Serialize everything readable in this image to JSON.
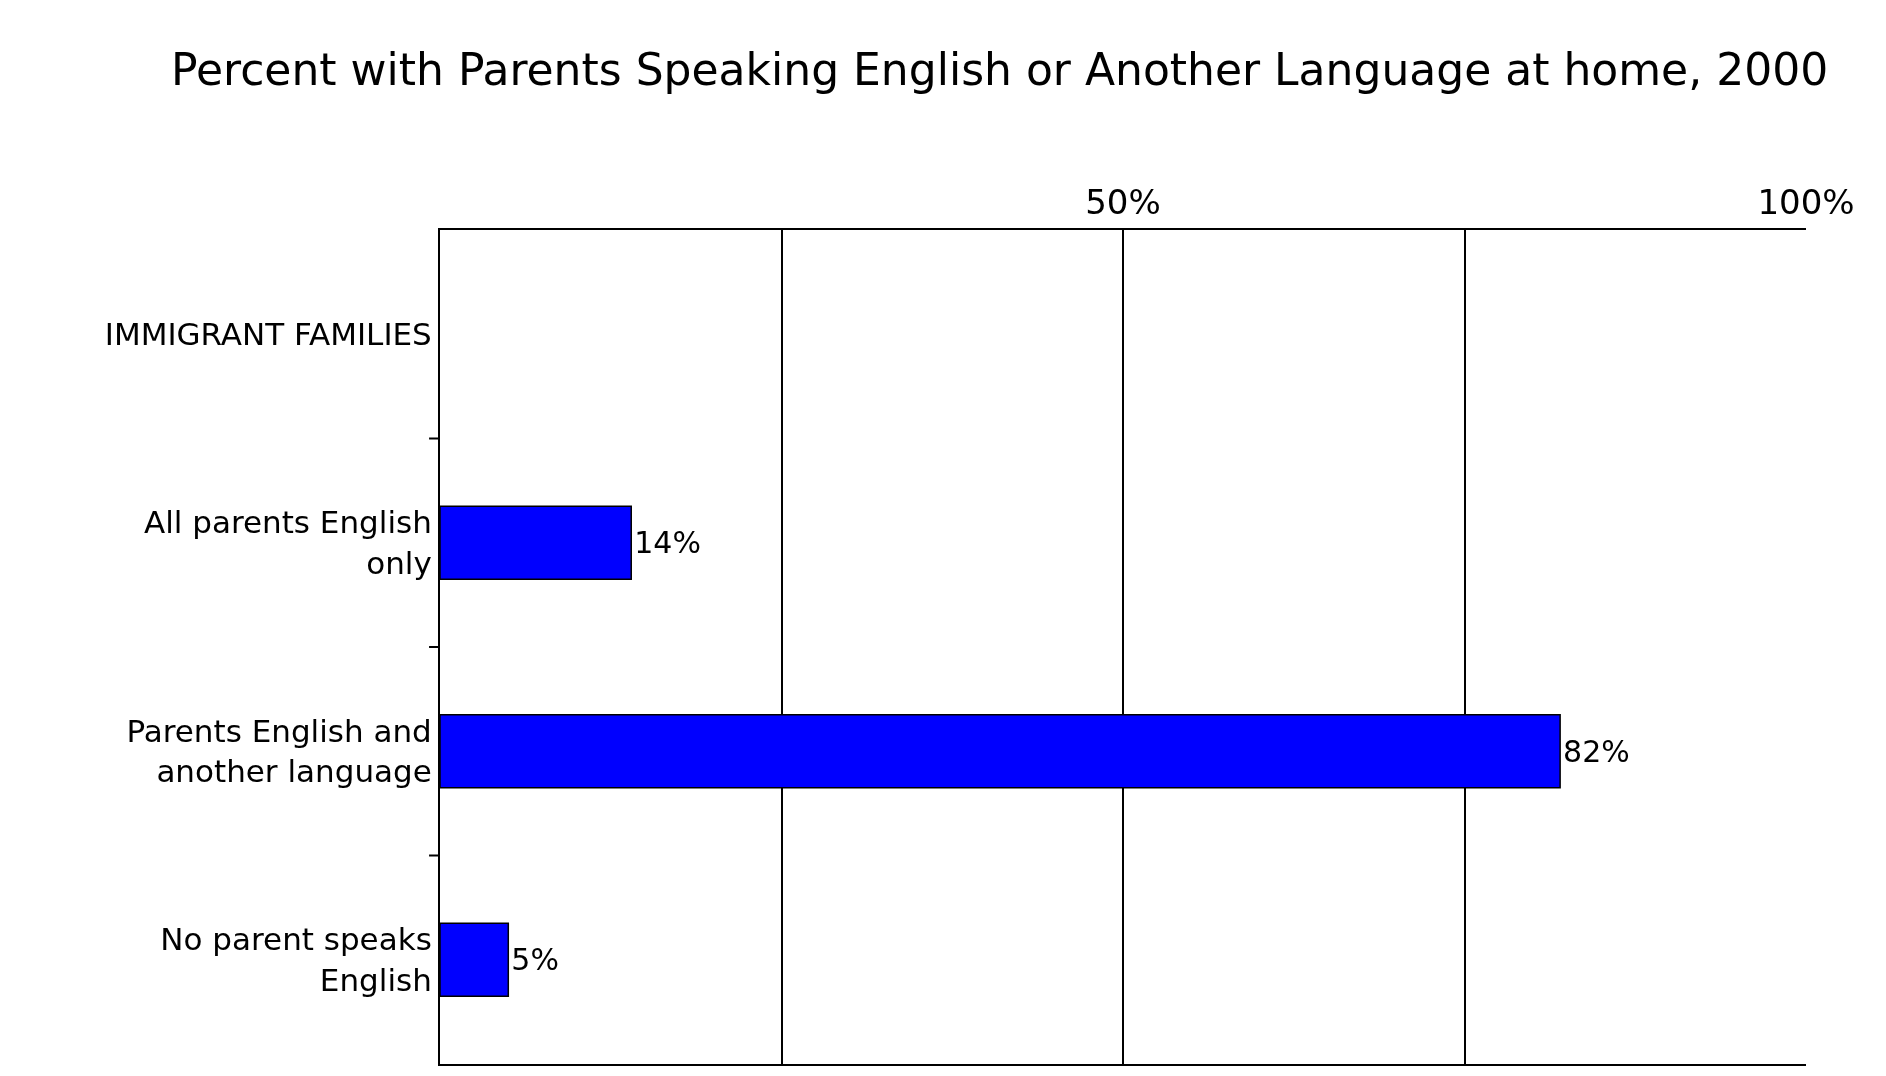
{
  "chart_data": {
    "type": "bar",
    "title": "Percent with Parents Speaking English or Another Language at home, 2000",
    "orientation": "horizontal",
    "categories": [
      "IMMIGRANT FAMILIES",
      "All parents English only",
      "Parents English and another language",
      "No parent speaks English"
    ],
    "values": [
      null,
      14,
      82,
      5
    ],
    "value_labels": [
      null,
      "14%",
      "82%",
      "5%"
    ],
    "color": "#0000ff",
    "xlim": [
      0,
      100
    ],
    "xticks": [
      {
        "value": 0,
        "label": null
      },
      {
        "value": 25,
        "label": null
      },
      {
        "value": 50,
        "label": "50%"
      },
      {
        "value": 75,
        "label": null
      },
      {
        "value": 100,
        "label": "100%"
      }
    ],
    "grid": "x"
  }
}
